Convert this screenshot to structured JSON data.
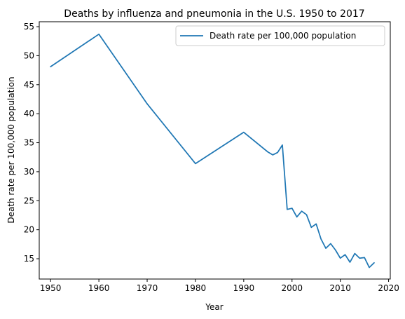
{
  "chart_data": {
    "type": "line",
    "title": "Deaths by influenza and pneumonia in the U.S. 1950 to 2017",
    "xlabel": "Year",
    "ylabel": "Death rate per 100,000 population",
    "xlim": [
      1947.65,
      2020.35
    ],
    "ylim": [
      11.5,
      55.85
    ],
    "xticks": [
      1950,
      1960,
      1970,
      1980,
      1990,
      2000,
      2010,
      2020
    ],
    "yticks": [
      15,
      20,
      25,
      30,
      35,
      40,
      45,
      50,
      55
    ],
    "grid": false,
    "legend": "top-right",
    "series": [
      {
        "name": "Death rate per 100,000 population",
        "color": "#1f77b4",
        "x": [
          1950,
          1960,
          1970,
          1980,
          1990,
          1995,
          1996,
          1997,
          1998,
          1999,
          2000,
          2001,
          2002,
          2003,
          2004,
          2005,
          2006,
          2007,
          2008,
          2009,
          2010,
          2011,
          2012,
          2013,
          2014,
          2015,
          2016,
          2017
        ],
        "y": [
          48.1,
          53.7,
          41.7,
          31.4,
          36.8,
          33.4,
          32.9,
          33.3,
          34.6,
          23.5,
          23.7,
          22.2,
          23.2,
          22.6,
          20.4,
          21.0,
          18.4,
          16.8,
          17.6,
          16.5,
          15.1,
          15.7,
          14.4,
          15.9,
          15.1,
          15.2,
          13.5,
          14.3
        ]
      }
    ]
  }
}
